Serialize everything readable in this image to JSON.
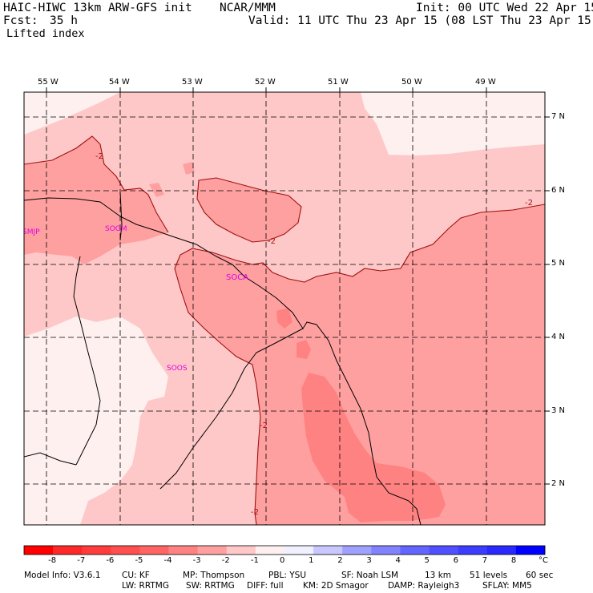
{
  "header": {
    "model": "HAIC-HIWC 13km ARW-GFS init",
    "org": "NCAR/MMM",
    "fcst_label": "Fcst:",
    "fcst_value": "35 h",
    "init": "Init: 00 UTC Wed 22 Apr 15",
    "valid": "Valid: 11 UTC Thu 23 Apr 15 (08 LST Thu 23 Apr 15)",
    "field": "Lifted index"
  },
  "map": {
    "lon_labels": [
      "55 W",
      "54 W",
      "53 W",
      "52 W",
      "51 W",
      "50 W",
      "49 W"
    ],
    "lat_labels": [
      "7 N",
      "6 N",
      "5 N",
      "4 N",
      "3 N",
      "2 N"
    ],
    "stations": [
      "SMJP",
      "SOGM",
      "SOCA",
      "SOOS"
    ],
    "contour_labels": [
      "-2",
      "-2",
      "-2",
      "-2",
      "-2"
    ]
  },
  "colorbar": {
    "ticks": [
      "-8",
      "-7",
      "-6",
      "-5",
      "-4",
      "-3",
      "-2",
      "-1",
      "0",
      "1",
      "2",
      "3",
      "4",
      "5",
      "6",
      "7",
      "8"
    ],
    "unit": "°C",
    "colors": [
      "#ff0000",
      "#ff2828",
      "#ff3c3c",
      "#ff5050",
      "#ff6464",
      "#ff8282",
      "#ffa0a0",
      "#ffc8c8",
      "#fff0f0",
      "#f0f0ff",
      "#c8c8ff",
      "#a0a0ff",
      "#8282ff",
      "#6464ff",
      "#5050ff",
      "#3c3cff",
      "#2828ff",
      "#0000ff"
    ]
  },
  "footer": {
    "line1": [
      "Model Info: V3.6.1",
      "CU: KF",
      "MP: Thompson",
      "PBL: YSU",
      "SF: Noah LSM",
      "13 km",
      "51 levels",
      "60 sec"
    ],
    "line2": [
      "LW: RRTMG",
      "SW: RRTMG",
      "DIFF: full",
      "KM: 2D Smagor",
      "DAMP: Rayleigh3",
      "SFLAY: MM5"
    ]
  }
}
